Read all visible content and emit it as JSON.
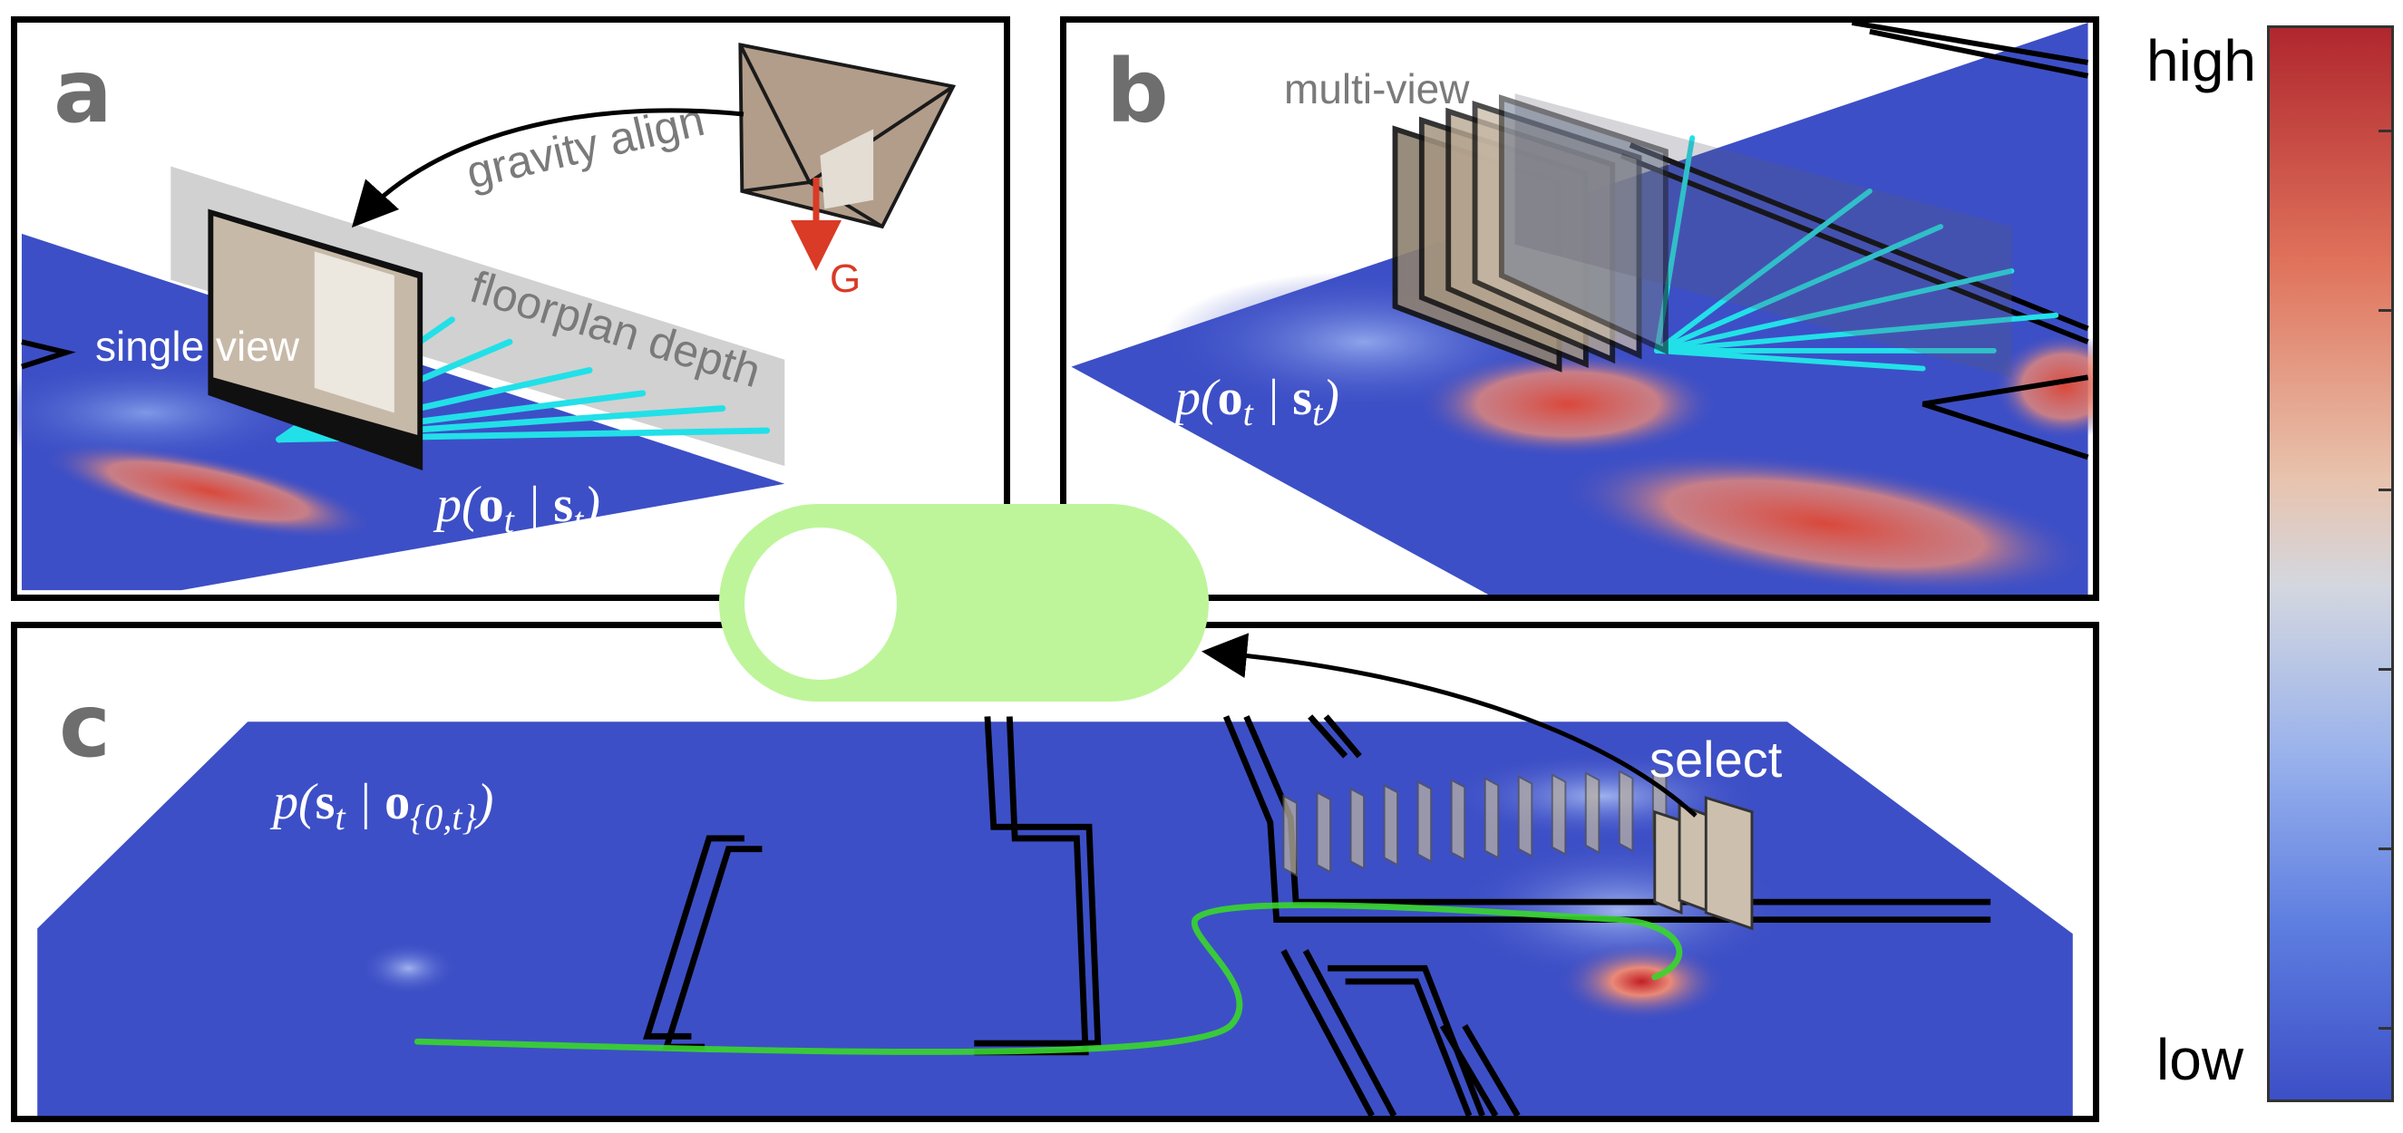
{
  "panels": {
    "a": {
      "label": "a",
      "gravity_align": "gravity align",
      "gravity_symbol": "G",
      "floorplan_depth": "floorplan depth",
      "single_view": "single view",
      "math": {
        "p": "p(",
        "o": "o",
        "o_sub": "t",
        "bar": " | ",
        "s": "s",
        "s_sub": "t",
        "close": ")"
      }
    },
    "b": {
      "label": "b",
      "multi_view": "multi-view",
      "math": {
        "p": "p(",
        "o": "o",
        "o_sub": "t",
        "bar": " | ",
        "s": "s",
        "s_sub": "t",
        "close": ")"
      }
    },
    "c": {
      "label": "c",
      "select": "select",
      "math": {
        "p": "p(",
        "s": "s",
        "s_sub": "t",
        "bar": " | ",
        "o": "o",
        "o_sub": "{0,t}",
        "close": ")"
      }
    }
  },
  "toggle": {
    "state": "off"
  },
  "colorbar": {
    "high_label": "high",
    "low_label": "low"
  },
  "colors": {
    "floor_blue": "#3d4fc6",
    "heat_red": "#d9483b",
    "ray_cyan": "#22e0e8",
    "trajectory_green": "#39d62b",
    "gravity_red": "#d93b26",
    "toggle_green": "#bef59a"
  }
}
